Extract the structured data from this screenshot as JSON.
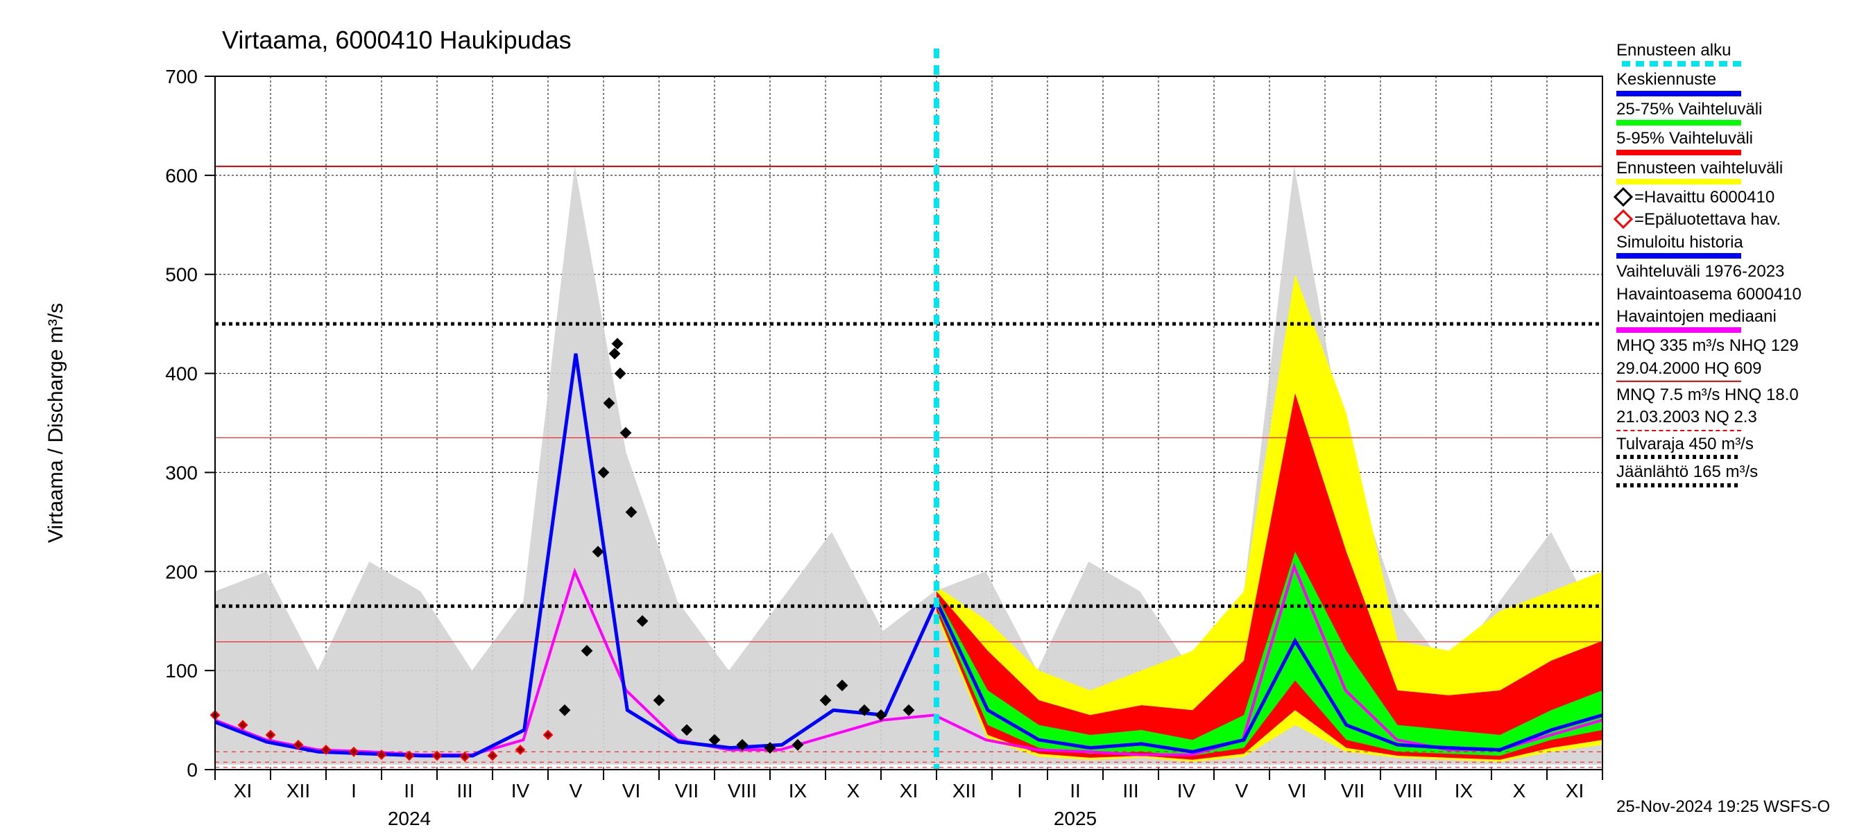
{
  "chart": {
    "type": "line",
    "title": "Virtaama, 6000410 Haukipudas",
    "ylabel": "Virtaama / Discharge    m³/s",
    "ylim": [
      0,
      700
    ],
    "ytick_step": 100,
    "yticks": [
      0,
      100,
      200,
      300,
      400,
      500,
      600,
      700
    ],
    "x_month_labels": [
      "XI",
      "XII",
      "I",
      "II",
      "III",
      "IV",
      "V",
      "VI",
      "VII",
      "VIII",
      "IX",
      "X",
      "XI",
      "XII",
      "I",
      "II",
      "III",
      "IV",
      "V",
      "VI",
      "VII",
      "VIII",
      "IX",
      "X",
      "XI"
    ],
    "x_year_labels": [
      {
        "label": "2024",
        "position_months": 3
      },
      {
        "label": "2025",
        "position_months": 15
      }
    ],
    "background_color": "#ffffff",
    "grid_color": "#000000",
    "grid_dash": "3,3",
    "title_fontsize": 36,
    "label_fontsize": 30,
    "tick_fontsize": 28,
    "forecast_start_month_index": 13,
    "reference_lines": {
      "HQ": {
        "value": 609,
        "color": "#ff0000",
        "width": 2,
        "dash": null
      },
      "MHQ": {
        "value": 335,
        "color": "#ff0000",
        "width": 1,
        "dash": null
      },
      "NHQ": {
        "value": 129,
        "color": "#ff0000",
        "width": 1,
        "dash": null
      },
      "Tulvaraja": {
        "value": 450,
        "color": "#000000",
        "width": 5,
        "dash": "5,5"
      },
      "Jaanlahto": {
        "value": 165,
        "color": "#000000",
        "width": 5,
        "dash": "5,5"
      },
      "MNQ": {
        "value": 7.5,
        "color": "#ff0000",
        "width": 1,
        "dash": "6,6"
      },
      "HNQ": {
        "value": 18.0,
        "color": "#ff0000",
        "width": 1,
        "dash": "6,6"
      },
      "NQ": {
        "value": 2.3,
        "color": "#ff0000",
        "width": 1,
        "dash": "6,6"
      }
    },
    "historical_band_color": "#d3d3d3",
    "historical_band_upper": [
      180,
      200,
      100,
      210,
      180,
      100,
      170,
      610,
      320,
      170,
      100,
      170,
      240,
      140,
      180,
      200,
      100,
      210,
      180,
      100,
      170,
      610,
      320,
      170,
      100,
      170,
      240,
      140
    ],
    "historical_band_lower": [
      5,
      5,
      5,
      5,
      5,
      5,
      5,
      5,
      5,
      5,
      5,
      5,
      5,
      5,
      5,
      5,
      5,
      5,
      5,
      5,
      5,
      5,
      5,
      5,
      5,
      5,
      5,
      5
    ],
    "median_history": {
      "color": "#ff00ff",
      "width": 4,
      "values": [
        50,
        30,
        20,
        18,
        15,
        15,
        30,
        200,
        80,
        30,
        20,
        20,
        35,
        50,
        55,
        30,
        20,
        18,
        15,
        15,
        30,
        205,
        80,
        30,
        20,
        20,
        35,
        50
      ]
    },
    "simulated_history": {
      "color": "#0000ff",
      "width": 5,
      "values": [
        48,
        28,
        18,
        16,
        14,
        14,
        40,
        420,
        60,
        28,
        22,
        25,
        60,
        55,
        170
      ]
    },
    "observed": {
      "marker": "diamond",
      "stroke": "#000000",
      "fill": "#000000",
      "size": 14,
      "values": [
        [
          6.3,
          60
        ],
        [
          6.7,
          120
        ],
        [
          6.9,
          220
        ],
        [
          7.0,
          300
        ],
        [
          7.1,
          370
        ],
        [
          7.2,
          420
        ],
        [
          7.25,
          430
        ],
        [
          7.3,
          400
        ],
        [
          7.4,
          340
        ],
        [
          7.5,
          260
        ],
        [
          7.7,
          150
        ],
        [
          8.0,
          70
        ],
        [
          8.5,
          40
        ],
        [
          9.0,
          30
        ],
        [
          9.5,
          25
        ],
        [
          10.0,
          22
        ],
        [
          10.5,
          25
        ],
        [
          11.0,
          70
        ],
        [
          11.3,
          85
        ],
        [
          11.7,
          60
        ],
        [
          12.0,
          55
        ],
        [
          12.5,
          60
        ]
      ]
    },
    "unreliable_observed": {
      "marker": "diamond",
      "stroke": "#ff0000",
      "fill": "#8b0000",
      "size": 12,
      "values": [
        [
          0,
          55
        ],
        [
          0.5,
          45
        ],
        [
          1.0,
          35
        ],
        [
          1.5,
          25
        ],
        [
          2.0,
          20
        ],
        [
          2.5,
          18
        ],
        [
          3.0,
          15
        ],
        [
          3.5,
          14
        ],
        [
          4.0,
          14
        ],
        [
          4.5,
          13
        ],
        [
          5.0,
          14
        ],
        [
          5.5,
          20
        ],
        [
          6.0,
          35
        ]
      ]
    },
    "forecast": {
      "median": {
        "color": "#0000ff",
        "width": 5,
        "values": [
          170,
          60,
          30,
          22,
          26,
          18,
          30,
          130,
          45,
          25,
          22,
          20,
          40,
          55
        ]
      },
      "band_25_75": {
        "color": "#00ff00",
        "upper": [
          175,
          80,
          45,
          35,
          40,
          30,
          55,
          220,
          120,
          45,
          40,
          35,
          60,
          80
        ],
        "lower": [
          165,
          45,
          22,
          16,
          18,
          14,
          22,
          90,
          30,
          18,
          16,
          14,
          30,
          40
        ]
      },
      "band_5_95": {
        "color": "#ff0000",
        "upper": [
          180,
          120,
          70,
          55,
          65,
          60,
          110,
          380,
          220,
          80,
          75,
          80,
          110,
          130
        ],
        "lower": [
          160,
          35,
          16,
          12,
          14,
          10,
          16,
          60,
          22,
          14,
          12,
          10,
          22,
          30
        ]
      },
      "band_full": {
        "color": "#ffff00",
        "upper": [
          185,
          150,
          100,
          80,
          100,
          120,
          180,
          500,
          360,
          130,
          120,
          160,
          180,
          200
        ],
        "lower": [
          155,
          30,
          13,
          10,
          12,
          8,
          13,
          45,
          18,
          12,
          10,
          8,
          18,
          25
        ]
      }
    }
  },
  "legend": {
    "items": [
      {
        "label": "Ennusteen alku",
        "type": "dash",
        "color": "#00e5ee"
      },
      {
        "label": "Keskiennuste",
        "type": "line",
        "color": "#0000ff"
      },
      {
        "label": "25-75% Vaihteluväli",
        "type": "line",
        "color": "#00ff00"
      },
      {
        "label": "5-95% Vaihteluväli",
        "type": "line",
        "color": "#ff0000"
      },
      {
        "label": "Ennusteen vaihteluväli",
        "type": "line",
        "color": "#ffff00"
      },
      {
        "label": "=Havaittu 6000410",
        "type": "marker",
        "stroke": "#000000",
        "fill": "#ffffff"
      },
      {
        "label": "=Epäluotettava hav.",
        "type": "marker",
        "stroke": "#ff0000",
        "fill": "#ffffff"
      },
      {
        "label": "Simuloitu historia",
        "type": "line",
        "color": "#0000ff"
      },
      {
        "label": "Vaihteluväli 1976-2023",
        "type": "text"
      },
      {
        "label": " Havaintoasema 6000410",
        "type": "text"
      },
      {
        "label": "Havaintojen mediaani",
        "type": "line",
        "color": "#ff00ff"
      },
      {
        "label": "MHQ  335 m³/s NHQ  129",
        "type": "text"
      },
      {
        "label": "29.04.2000 HQ  609",
        "type": "thin",
        "color": "#ff0000"
      },
      {
        "label": "MNQ  7.5 m³/s HNQ 18.0",
        "type": "text"
      },
      {
        "label": "21.03.2003 NQ  2.3",
        "type": "thin-dash",
        "color": "#ff0000"
      },
      {
        "label": "Tulvaraja 450 m³/s",
        "type": "dots"
      },
      {
        "label": "Jäänlähtö 165 m³/s",
        "type": "dots"
      }
    ]
  },
  "footer": "25-Nov-2024 19:25 WSFS-O"
}
